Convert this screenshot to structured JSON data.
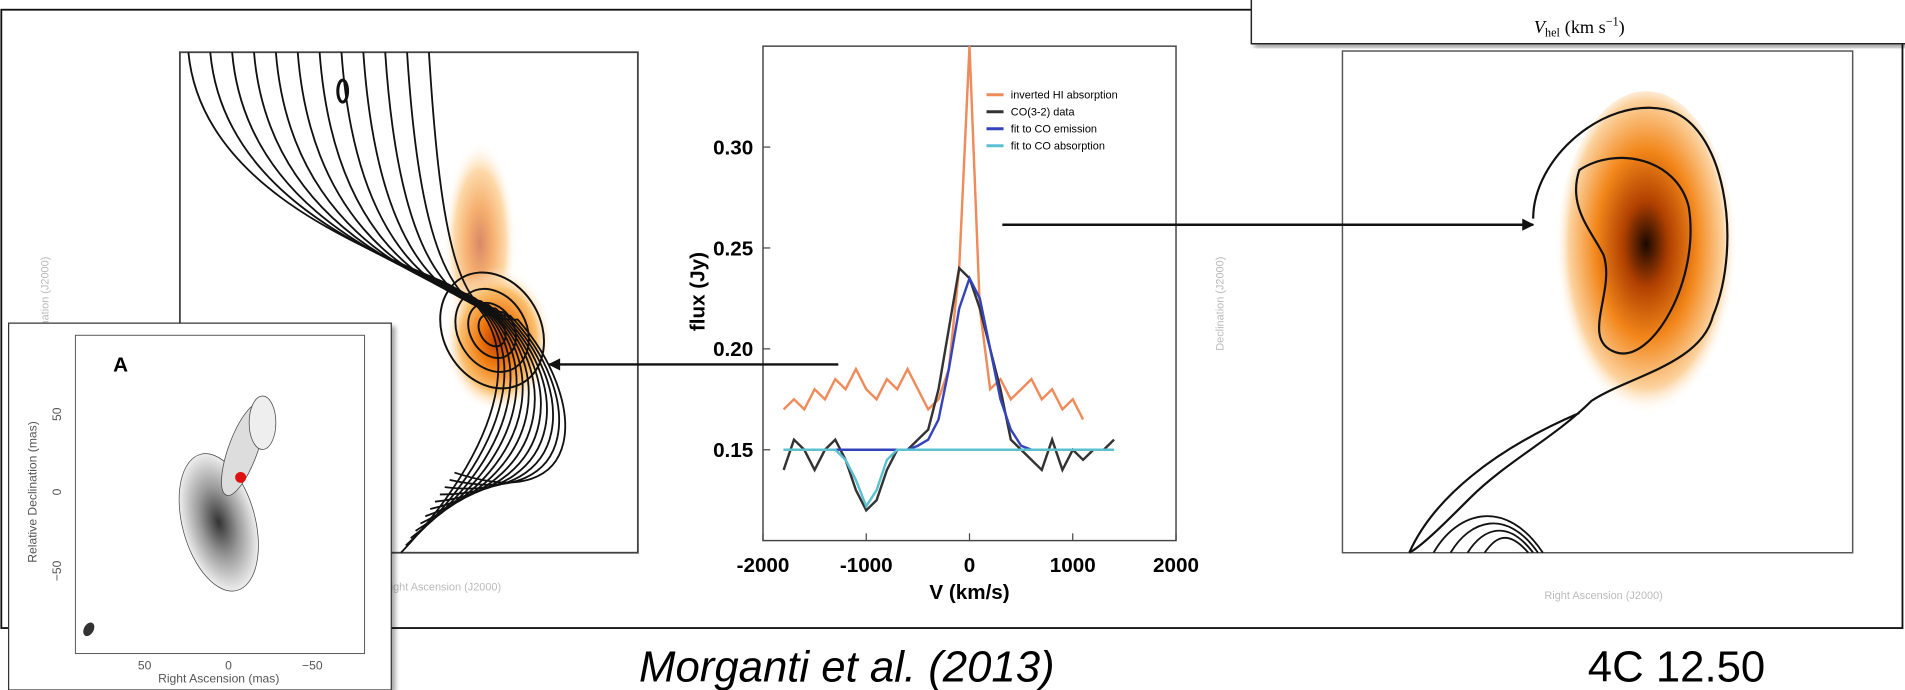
{
  "velocity_box": {
    "symbol": "V",
    "subscript": "hel",
    "unit": "(km s",
    "exponent": "−1",
    "close": ")"
  },
  "left_map": {
    "x_label": "Right Ascension (J2000)",
    "y_label": "Declination (J2000)"
  },
  "right_map": {
    "x_label": "Right Ascension (J2000)",
    "y_label": "Declination (J2000)"
  },
  "inset_a": {
    "panel_label": "A",
    "x_label": "Right Ascension   (mas)",
    "y_label": "Relative Declination   (mas)",
    "x_ticks": [
      "50",
      "0",
      "−50"
    ],
    "y_ticks": [
      "50",
      "0",
      "−50"
    ]
  },
  "chart_data": {
    "type": "line",
    "x_label": "V (km/s)",
    "y_label": "flux (Jy)",
    "x": [
      -1800,
      -1700,
      -1600,
      -1500,
      -1400,
      -1300,
      -1200,
      -1100,
      -1000,
      -900,
      -800,
      -700,
      -600,
      -500,
      -400,
      -300,
      -200,
      -100,
      0,
      100,
      200,
      300,
      400,
      500,
      600,
      700,
      800,
      900,
      1000,
      1100,
      1200,
      1300,
      1400
    ],
    "xlim": [
      -2000,
      2000
    ],
    "xticks": [
      -2000,
      -1000,
      0,
      1000,
      2000
    ],
    "ylim": [
      0.105,
      0.35
    ],
    "yticks": [
      0.15,
      {
        "value": 0.2,
        "label": "0.20"
      },
      0.25,
      {
        "value": 0.3,
        "label": "0.30"
      }
    ],
    "series": [
      {
        "name": "inverted HI absorption",
        "color": "#ef8a5a",
        "values": [
          0.17,
          0.175,
          0.17,
          0.18,
          0.175,
          0.185,
          0.18,
          0.19,
          0.18,
          0.175,
          0.185,
          0.18,
          0.19,
          0.18,
          0.17,
          0.175,
          0.19,
          0.24,
          0.35,
          0.22,
          0.18,
          0.185,
          0.175,
          0.18,
          0.185,
          0.175,
          0.18,
          0.17,
          0.175,
          0.165,
          null,
          null,
          null
        ]
      },
      {
        "name": "CO(3-2) data",
        "color": "#333333",
        "values": [
          0.14,
          0.155,
          0.15,
          0.14,
          0.15,
          0.155,
          0.145,
          0.13,
          0.12,
          0.125,
          0.14,
          0.15,
          0.15,
          0.155,
          0.16,
          0.18,
          0.21,
          0.24,
          0.235,
          0.22,
          0.2,
          0.18,
          0.155,
          0.15,
          0.145,
          0.14,
          0.155,
          0.14,
          0.15,
          0.145,
          0.15,
          0.15,
          0.155
        ]
      },
      {
        "name": "fit to CO emission",
        "color": "#3344bb",
        "values": [
          0.15,
          0.15,
          0.15,
          0.15,
          0.15,
          0.15,
          0.15,
          0.15,
          0.15,
          0.15,
          0.15,
          0.15,
          0.15,
          0.152,
          0.155,
          0.165,
          0.19,
          0.22,
          0.235,
          0.225,
          0.2,
          0.175,
          0.16,
          0.152,
          0.15,
          0.15,
          0.15,
          0.15,
          0.15,
          0.15,
          0.15,
          0.15,
          0.15
        ]
      },
      {
        "name": "fit to CO absorption",
        "color": "#5bc0d0",
        "values": [
          0.15,
          0.15,
          0.15,
          0.15,
          0.15,
          0.15,
          0.145,
          0.135,
          0.122,
          0.13,
          0.145,
          0.15,
          0.15,
          0.15,
          0.15,
          0.15,
          0.15,
          0.15,
          0.15,
          0.15,
          0.15,
          0.15,
          0.15,
          0.15,
          0.15,
          0.15,
          0.15,
          0.15,
          0.15,
          0.15,
          0.15,
          0.15,
          0.15
        ]
      }
    ]
  },
  "captions": {
    "citation": "Morganti et al. (2013)",
    "source": "4C 12.50"
  }
}
